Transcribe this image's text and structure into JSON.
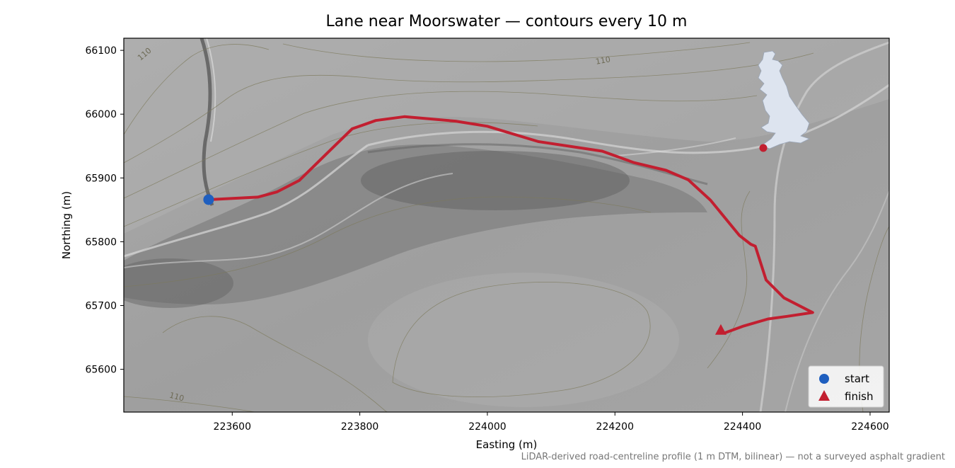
{
  "title": "Lane near Moorswater — contours every 10 m",
  "xlabel": "Easting (m)",
  "ylabel": "Northing (m)",
  "credit": "LiDAR-derived road-centreline profile (1 m DTM, bilinear) — not a surveyed asphalt gradient",
  "axes": {
    "x_range": [
      223430,
      224630
    ],
    "y_range": [
      65533,
      66119
    ],
    "x_ticks": [
      223600,
      223800,
      224000,
      224200,
      224400,
      224600
    ],
    "y_ticks": [
      65600,
      65700,
      65800,
      65900,
      66000,
      66100
    ]
  },
  "contour_labels": [
    {
      "text": "110",
      "e": 223465,
      "n": 66091,
      "rot": -40
    },
    {
      "text": "110",
      "e": 224620,
      "n": 66102,
      "rot": -10
    },
    {
      "text": "110",
      "e": 223512,
      "n": 65553,
      "rot": 15
    }
  ],
  "route": {
    "color": "#c21f30",
    "points": [
      [
        223563,
        65866
      ],
      [
        223640,
        65870
      ],
      [
        223670,
        65878
      ],
      [
        223705,
        65896
      ],
      [
        223750,
        65940
      ],
      [
        223788,
        65977
      ],
      [
        223825,
        65990
      ],
      [
        223870,
        65996
      ],
      [
        223950,
        65989
      ],
      [
        224000,
        65981
      ],
      [
        224080,
        65957
      ],
      [
        224180,
        65942
      ],
      [
        224230,
        65924
      ],
      [
        224280,
        65912
      ],
      [
        224315,
        65897
      ],
      [
        224350,
        65865
      ],
      [
        224395,
        65810
      ],
      [
        224413,
        65796
      ],
      [
        224420,
        65793
      ],
      [
        224437,
        65740
      ],
      [
        224465,
        65712
      ],
      [
        224510,
        65689
      ],
      [
        224470,
        65683
      ],
      [
        224440,
        65679
      ],
      [
        224402,
        65668
      ],
      [
        224372,
        65657
      ]
    ]
  },
  "start": {
    "label": "start",
    "e": 223563,
    "n": 65866,
    "color": "#1f5fbf"
  },
  "finish": {
    "label": "finish",
    "e": 224366,
    "n": 65662,
    "color": "#c21f30"
  },
  "inset": {
    "fill": "#dde4ef",
    "marker_color": "#c21f30"
  },
  "legend": {
    "position": "bottom-right"
  }
}
